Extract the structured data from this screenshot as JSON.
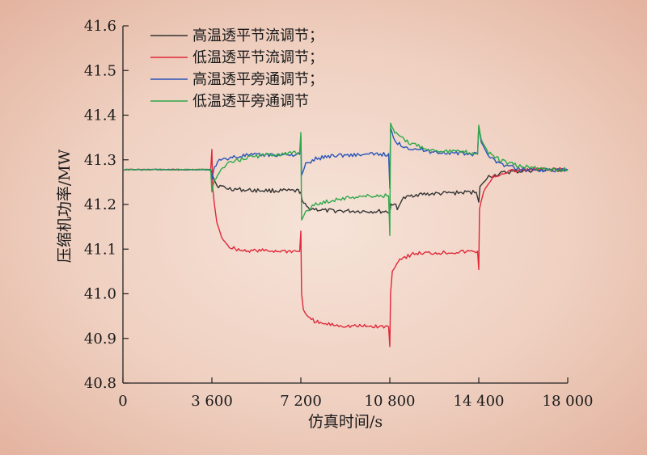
{
  "chart_data": {
    "type": "line",
    "xlabel": "仿真时间/s",
    "ylabel": "压缩机功率/MW",
    "xlim": [
      0,
      18000
    ],
    "ylim": [
      40.8,
      41.6
    ],
    "x_ticks": [
      "0",
      "3 600",
      "7 200",
      "10 800",
      "14 400",
      "18 000"
    ],
    "y_ticks": [
      "40.8",
      "40.9",
      "41.0",
      "41.1",
      "41.2",
      "41.3",
      "41.4",
      "41.5",
      "41.6"
    ],
    "legend_position": "top-left",
    "series": [
      {
        "name": "高温透平节流调节；",
        "color": "#333333",
        "points": [
          [
            0,
            41.278
          ],
          [
            3500,
            41.278
          ],
          [
            3600,
            41.275
          ],
          [
            3650,
            41.262
          ],
          [
            3800,
            41.243
          ],
          [
            4200,
            41.236
          ],
          [
            5000,
            41.232
          ],
          [
            7100,
            41.23
          ],
          [
            7200,
            41.228
          ],
          [
            7250,
            41.205
          ],
          [
            7500,
            41.192
          ],
          [
            8200,
            41.186
          ],
          [
            10700,
            41.184
          ],
          [
            10800,
            41.182
          ],
          [
            10850,
            41.2
          ],
          [
            11000,
            41.203
          ],
          [
            11100,
            41.188
          ],
          [
            11300,
            41.212
          ],
          [
            11800,
            41.222
          ],
          [
            14300,
            41.228
          ],
          [
            14400,
            41.205
          ],
          [
            14450,
            41.24
          ],
          [
            14800,
            41.262
          ],
          [
            15500,
            41.272
          ],
          [
            16500,
            41.276
          ],
          [
            18000,
            41.278
          ]
        ]
      },
      {
        "name": "低温透平节流调节；",
        "color": "#e0283a",
        "points": [
          [
            0,
            41.278
          ],
          [
            3550,
            41.278
          ],
          [
            3600,
            41.322
          ],
          [
            3630,
            41.24
          ],
          [
            3700,
            41.2
          ],
          [
            3800,
            41.16
          ],
          [
            4000,
            41.125
          ],
          [
            4300,
            41.105
          ],
          [
            4800,
            41.097
          ],
          [
            7150,
            41.095
          ],
          [
            7200,
            41.14
          ],
          [
            7230,
            41.0
          ],
          [
            7300,
            40.965
          ],
          [
            7500,
            40.945
          ],
          [
            8000,
            40.933
          ],
          [
            9000,
            40.928
          ],
          [
            10750,
            40.926
          ],
          [
            10800,
            40.882
          ],
          [
            10830,
            41.0
          ],
          [
            10900,
            41.05
          ],
          [
            11200,
            41.078
          ],
          [
            11800,
            41.09
          ],
          [
            14350,
            41.095
          ],
          [
            14400,
            41.055
          ],
          [
            14430,
            41.19
          ],
          [
            14600,
            41.23
          ],
          [
            15000,
            41.262
          ],
          [
            15600,
            41.274
          ],
          [
            16500,
            41.278
          ],
          [
            18000,
            41.278
          ]
        ]
      },
      {
        "name": "高温透平旁通调节；",
        "color": "#2a54b8",
        "points": [
          [
            0,
            41.278
          ],
          [
            3550,
            41.278
          ],
          [
            3600,
            41.255
          ],
          [
            3700,
            41.285
          ],
          [
            3900,
            41.297
          ],
          [
            4300,
            41.305
          ],
          [
            5000,
            41.31
          ],
          [
            7150,
            41.312
          ],
          [
            7200,
            41.35
          ],
          [
            7230,
            41.265
          ],
          [
            7400,
            41.29
          ],
          [
            7800,
            41.302
          ],
          [
            8500,
            41.31
          ],
          [
            10750,
            41.313
          ],
          [
            10800,
            41.235
          ],
          [
            10830,
            41.372
          ],
          [
            11000,
            41.34
          ],
          [
            11500,
            41.328
          ],
          [
            12500,
            41.318
          ],
          [
            14350,
            41.312
          ],
          [
            14400,
            41.374
          ],
          [
            14500,
            41.34
          ],
          [
            14800,
            41.308
          ],
          [
            15300,
            41.29
          ],
          [
            16000,
            41.28
          ],
          [
            17000,
            41.277
          ],
          [
            18000,
            41.276
          ]
        ]
      },
      {
        "name": "低温透平旁通调节",
        "color": "#2fa84a",
        "points": [
          [
            0,
            41.278
          ],
          [
            3550,
            41.278
          ],
          [
            3600,
            41.228
          ],
          [
            3700,
            41.255
          ],
          [
            3900,
            41.275
          ],
          [
            4300,
            41.292
          ],
          [
            5000,
            41.305
          ],
          [
            6000,
            41.312
          ],
          [
            7150,
            41.315
          ],
          [
            7200,
            41.362
          ],
          [
            7230,
            41.165
          ],
          [
            7400,
            41.185
          ],
          [
            7800,
            41.2
          ],
          [
            8500,
            41.21
          ],
          [
            9500,
            41.218
          ],
          [
            10750,
            41.22
          ],
          [
            10800,
            41.13
          ],
          [
            10830,
            41.382
          ],
          [
            11000,
            41.36
          ],
          [
            11500,
            41.34
          ],
          [
            12500,
            41.322
          ],
          [
            14350,
            41.315
          ],
          [
            14400,
            41.377
          ],
          [
            14500,
            41.345
          ],
          [
            14800,
            41.315
          ],
          [
            15300,
            41.298
          ],
          [
            16000,
            41.286
          ],
          [
            17000,
            41.28
          ],
          [
            18000,
            41.278
          ]
        ]
      }
    ]
  }
}
